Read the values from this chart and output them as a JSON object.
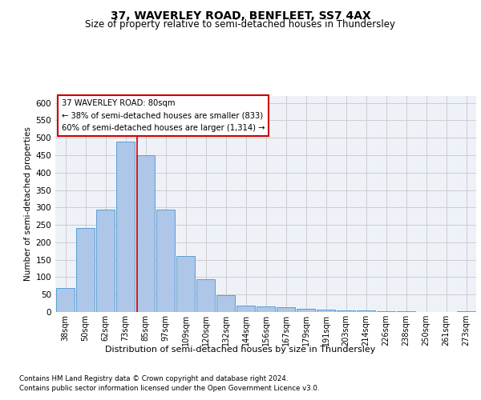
{
  "title": "37, WAVERLEY ROAD, BENFLEET, SS7 4AX",
  "subtitle": "Size of property relative to semi-detached houses in Thundersley",
  "xlabel": "Distribution of semi-detached houses by size in Thundersley",
  "ylabel": "Number of semi-detached properties",
  "footnote1": "Contains HM Land Registry data © Crown copyright and database right 2024.",
  "footnote2": "Contains public sector information licensed under the Open Government Licence v3.0.",
  "annotation_title": "37 WAVERLEY ROAD: 80sqm",
  "annotation_line1": "← 38% of semi-detached houses are smaller (833)",
  "annotation_line2": "60% of semi-detached houses are larger (1,314) →",
  "bar_categories": [
    "38sqm",
    "50sqm",
    "62sqm",
    "73sqm",
    "85sqm",
    "97sqm",
    "109sqm",
    "120sqm",
    "132sqm",
    "144sqm",
    "156sqm",
    "167sqm",
    "179sqm",
    "191sqm",
    "203sqm",
    "214sqm",
    "226sqm",
    "238sqm",
    "250sqm",
    "261sqm",
    "273sqm"
  ],
  "bar_values": [
    70,
    240,
    295,
    490,
    450,
    295,
    160,
    95,
    49,
    18,
    15,
    14,
    9,
    6,
    5,
    4,
    3,
    2,
    1,
    1,
    3
  ],
  "bar_color": "#aec6e8",
  "bar_edge_color": "#5a9fd4",
  "grid_color": "#cccccc",
  "highlight_line_color": "#cc0000",
  "annotation_box_edge": "#cc0000",
  "ylim": [
    0,
    620
  ],
  "yticks": [
    0,
    50,
    100,
    150,
    200,
    250,
    300,
    350,
    400,
    450,
    500,
    550,
    600
  ],
  "background_color": "#eef2f8"
}
